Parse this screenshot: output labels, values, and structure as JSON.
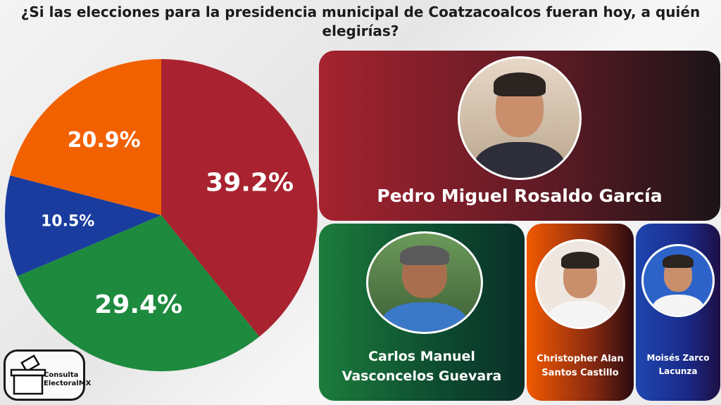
{
  "title": "¿Si las elecciones para la presidencia municipal de Coatzacoalcos fueran hoy, a quién elegirías?",
  "chart_data": {
    "type": "pie",
    "title": "¿Si las elecciones para la presidencia municipal de Coatzacoalcos fueran hoy, a quién elegirías?",
    "start": "top, clockwise",
    "slices": [
      {
        "name": "Pedro Miguel Rosaldo García",
        "value": 39.2,
        "label": "39.2%",
        "color": "#a8232f"
      },
      {
        "name": "Carlos Manuel Vasconcelos Guevara",
        "value": 29.4,
        "label": "29.4%",
        "color": "#1d8a3e"
      },
      {
        "name": "Moisés Zarco Lacunza",
        "value": 10.5,
        "label": "10.5%",
        "color": "#1a3c9e"
      },
      {
        "name": "Christopher Alan Santos Castillo",
        "value": 20.9,
        "label": "20.9%",
        "color": "#f26100"
      }
    ]
  },
  "candidates": {
    "pedro": "Pedro Miguel Rosaldo García",
    "carlos_1": "Carlos Manuel",
    "carlos_2": "Vasconcelos Guevara",
    "christopher_1": "Christopher Alan",
    "christopher_2": "Santos Castillo",
    "moises_1": "Moisés Zarco",
    "moises_2": "Lacunza"
  },
  "logo": {
    "line1": "Consulta",
    "line2": "ElectoralMX"
  }
}
